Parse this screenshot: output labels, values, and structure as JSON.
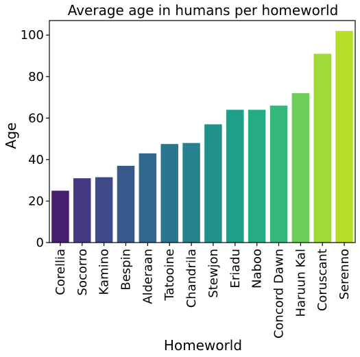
{
  "chart_data": {
    "type": "bar",
    "title": "Average age in humans per homeworld",
    "xlabel": "Homeworld",
    "ylabel": "Age",
    "ylim": [
      0,
      107
    ],
    "yticks": [
      0,
      20,
      40,
      60,
      80,
      100
    ],
    "grid": false,
    "legend": "none",
    "categories": [
      "Corellia",
      "Socorro",
      "Kamino",
      "Bespin",
      "Alderaan",
      "Tatooine",
      "Chandrila",
      "Stewjon",
      "Eriadu",
      "Naboo",
      "Concord Dawn",
      "Haruun Kal",
      "Coruscant",
      "Serenno"
    ],
    "values": [
      25,
      31,
      31.5,
      37,
      43,
      47.5,
      48,
      57,
      64,
      64,
      66,
      72,
      91,
      102
    ],
    "colors": [
      "#481f70",
      "#443983",
      "#3f4a8a",
      "#375a8c",
      "#31688e",
      "#2b758e",
      "#26828e",
      "#21918c",
      "#1f9e89",
      "#25ac82",
      "#35b779",
      "#6ccd5a",
      "#a0da39",
      "#b5de2b"
    ]
  }
}
